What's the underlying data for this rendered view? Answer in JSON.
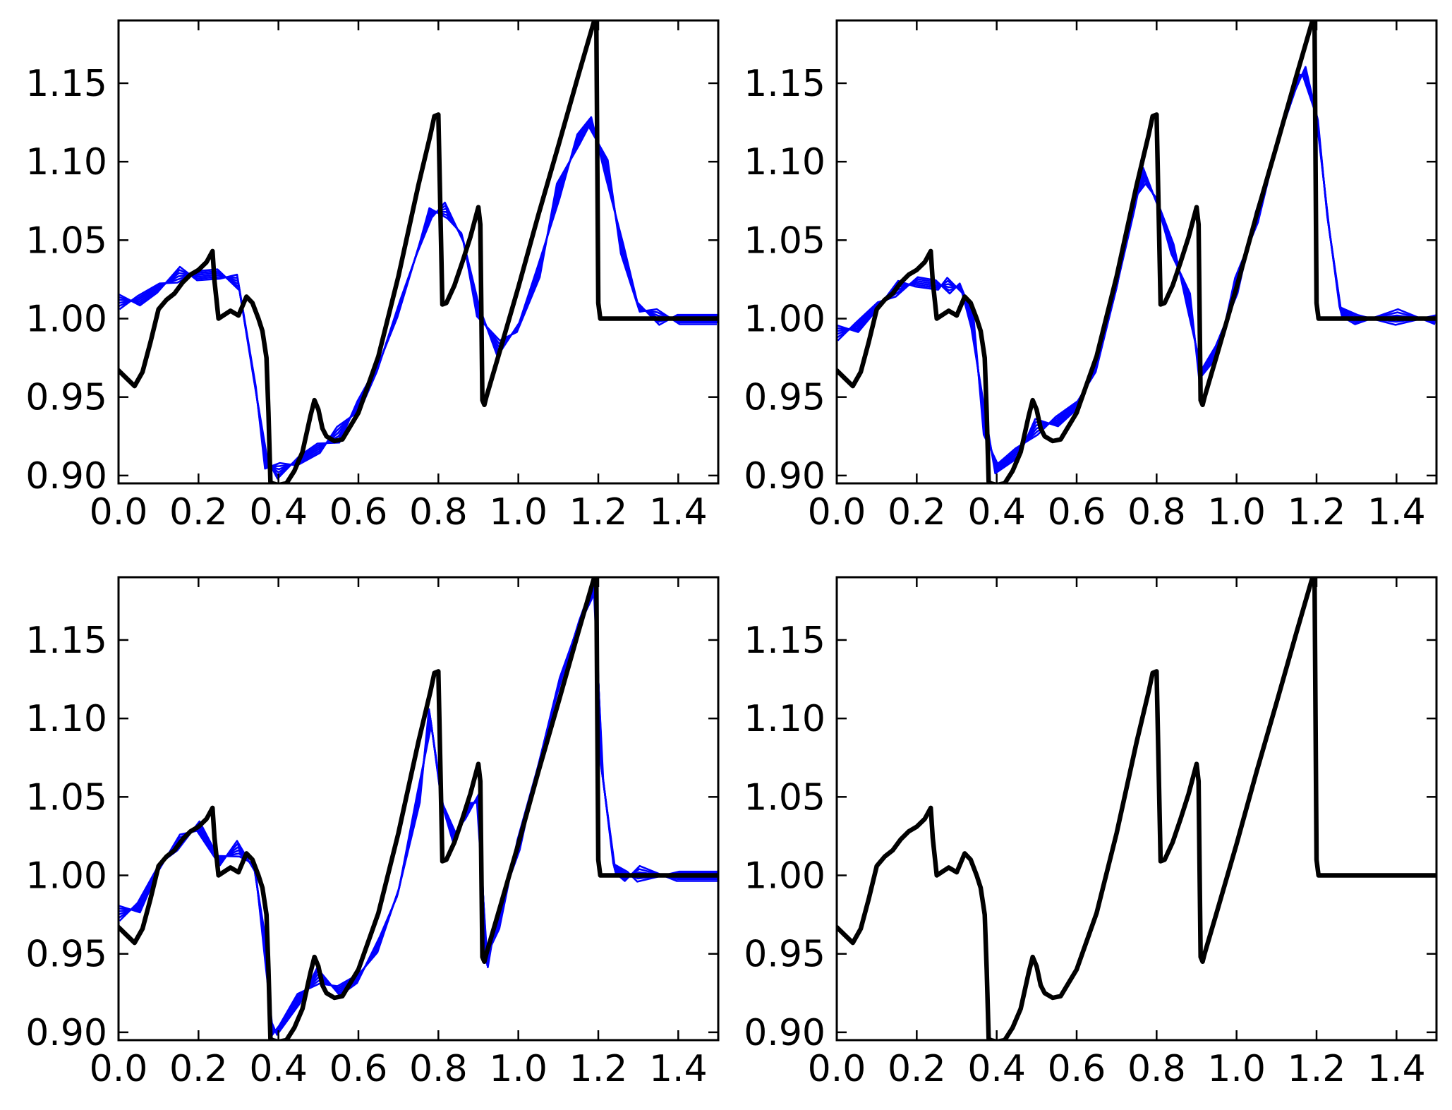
{
  "chart_data": [
    {
      "type": "line",
      "panel": "top-left",
      "xlim": [
        0.0,
        1.5
      ],
      "ylim": [
        0.895,
        1.19
      ],
      "xticks": [
        "0.0",
        "0.2",
        "0.4",
        "0.6",
        "0.8",
        "1.0",
        "1.2",
        "1.4"
      ],
      "yticks": [
        "0.90",
        "0.95",
        "1.00",
        "1.05",
        "1.10",
        "1.15"
      ],
      "reference": {
        "color": "#000000",
        "x": [
          0.0,
          0.02,
          0.04,
          0.06,
          0.08,
          0.1,
          0.12,
          0.14,
          0.16,
          0.18,
          0.2,
          0.22,
          0.235,
          0.24,
          0.25,
          0.28,
          0.3,
          0.32,
          0.335,
          0.35,
          0.36,
          0.37,
          0.375,
          0.38,
          0.385,
          0.4,
          0.42,
          0.44,
          0.46,
          0.48,
          0.49,
          0.5,
          0.51,
          0.52,
          0.54,
          0.56,
          0.6,
          0.65,
          0.7,
          0.75,
          0.78,
          0.79,
          0.8,
          0.81,
          0.82,
          0.84,
          0.86,
          0.88,
          0.9,
          0.905,
          0.91,
          0.915,
          0.92,
          0.95,
          1.0,
          1.05,
          1.1,
          1.15,
          1.19,
          1.195,
          1.2,
          1.205,
          1.21,
          1.3,
          1.4,
          1.5
        ],
        "y": [
          0.967,
          0.962,
          0.957,
          0.966,
          0.985,
          1.006,
          1.012,
          1.016,
          1.023,
          1.028,
          1.031,
          1.036,
          1.043,
          1.024,
          1.0,
          1.005,
          1.002,
          1.014,
          1.01,
          1.0,
          0.992,
          0.975,
          0.94,
          0.896,
          0.895,
          0.894,
          0.895,
          0.903,
          0.915,
          0.938,
          0.948,
          0.942,
          0.93,
          0.925,
          0.922,
          0.923,
          0.94,
          0.976,
          1.027,
          1.085,
          1.117,
          1.129,
          1.13,
          1.009,
          1.01,
          1.021,
          1.036,
          1.052,
          1.071,
          1.06,
          0.948,
          0.945,
          0.95,
          0.976,
          1.02,
          1.066,
          1.11,
          1.155,
          1.19,
          1.19,
          1.01,
          1.0,
          1.0,
          1.0,
          1.0,
          1.0
        ]
      },
      "ensemble": {
        "color": "#0000ff",
        "x": [
          0.0,
          0.05,
          0.1,
          0.15,
          0.2,
          0.25,
          0.3,
          0.34,
          0.37,
          0.4,
          0.45,
          0.5,
          0.55,
          0.6,
          0.65,
          0.7,
          0.75,
          0.78,
          0.82,
          0.86,
          0.9,
          0.95,
          1.0,
          1.05,
          1.1,
          1.15,
          1.18,
          1.22,
          1.26,
          1.3,
          1.35,
          1.4,
          1.5
        ],
        "y": [
          1.01,
          1.012,
          1.02,
          1.027,
          1.028,
          1.029,
          1.022,
          0.96,
          0.908,
          0.902,
          0.91,
          0.918,
          0.925,
          0.945,
          0.97,
          1.005,
          1.045,
          1.068,
          1.068,
          1.052,
          1.005,
          0.98,
          0.995,
          1.03,
          1.08,
          1.115,
          1.126,
          1.095,
          1.045,
          1.008,
          1.0,
          1.0,
          1.0
        ]
      }
    },
    {
      "type": "line",
      "panel": "top-right",
      "xlim": [
        0.0,
        1.5
      ],
      "ylim": [
        0.895,
        1.19
      ],
      "xticks": [
        "0.0",
        "0.2",
        "0.4",
        "0.6",
        "0.8",
        "1.0",
        "1.2",
        "1.4"
      ],
      "yticks": [
        "0.90",
        "0.95",
        "1.00",
        "1.05",
        "1.10",
        "1.15"
      ],
      "reference": {
        "color": "#000000",
        "x": [
          0.0,
          0.02,
          0.04,
          0.06,
          0.08,
          0.1,
          0.12,
          0.14,
          0.16,
          0.18,
          0.2,
          0.22,
          0.235,
          0.24,
          0.25,
          0.28,
          0.3,
          0.32,
          0.335,
          0.35,
          0.36,
          0.37,
          0.375,
          0.38,
          0.385,
          0.4,
          0.42,
          0.44,
          0.46,
          0.48,
          0.49,
          0.5,
          0.51,
          0.52,
          0.54,
          0.56,
          0.6,
          0.65,
          0.7,
          0.75,
          0.78,
          0.79,
          0.8,
          0.81,
          0.82,
          0.84,
          0.86,
          0.88,
          0.9,
          0.905,
          0.91,
          0.915,
          0.92,
          0.95,
          1.0,
          1.05,
          1.1,
          1.15,
          1.19,
          1.195,
          1.2,
          1.205,
          1.21,
          1.3,
          1.4,
          1.5
        ],
        "y": [
          0.967,
          0.962,
          0.957,
          0.966,
          0.985,
          1.006,
          1.012,
          1.016,
          1.023,
          1.028,
          1.031,
          1.036,
          1.043,
          1.024,
          1.0,
          1.005,
          1.002,
          1.014,
          1.01,
          1.0,
          0.992,
          0.975,
          0.94,
          0.896,
          0.895,
          0.894,
          0.895,
          0.903,
          0.915,
          0.938,
          0.948,
          0.942,
          0.93,
          0.925,
          0.922,
          0.923,
          0.94,
          0.976,
          1.027,
          1.085,
          1.117,
          1.129,
          1.13,
          1.009,
          1.01,
          1.021,
          1.036,
          1.052,
          1.071,
          1.06,
          0.948,
          0.945,
          0.95,
          0.976,
          1.02,
          1.066,
          1.11,
          1.155,
          1.19,
          1.19,
          1.01,
          1.0,
          1.0,
          1.0,
          1.0,
          1.0
        ]
      },
      "ensemble": {
        "color": "#0000ff",
        "x": [
          0.0,
          0.05,
          0.1,
          0.15,
          0.2,
          0.25,
          0.28,
          0.31,
          0.34,
          0.37,
          0.4,
          0.45,
          0.5,
          0.55,
          0.6,
          0.65,
          0.7,
          0.74,
          0.77,
          0.8,
          0.84,
          0.88,
          0.91,
          0.95,
          1.0,
          1.05,
          1.1,
          1.15,
          1.17,
          1.2,
          1.23,
          1.26,
          1.3,
          1.4,
          1.5
        ],
        "y": [
          0.99,
          0.995,
          1.008,
          1.018,
          1.024,
          1.022,
          1.02,
          1.02,
          0.998,
          0.93,
          0.905,
          0.915,
          0.93,
          0.935,
          0.945,
          0.97,
          1.02,
          1.072,
          1.09,
          1.075,
          1.045,
          1.01,
          0.965,
          0.98,
          1.02,
          1.065,
          1.11,
          1.15,
          1.158,
          1.13,
          1.06,
          1.005,
          1.0,
          1.0,
          1.0
        ]
      }
    },
    {
      "type": "line",
      "panel": "bottom-left",
      "xlim": [
        0.0,
        1.5
      ],
      "ylim": [
        0.895,
        1.19
      ],
      "xticks": [
        "0.0",
        "0.2",
        "0.4",
        "0.6",
        "0.8",
        "1.0",
        "1.2",
        "1.4"
      ],
      "yticks": [
        "0.90",
        "0.95",
        "1.00",
        "1.05",
        "1.10",
        "1.15"
      ],
      "reference": {
        "color": "#000000",
        "x": [
          0.0,
          0.02,
          0.04,
          0.06,
          0.08,
          0.1,
          0.12,
          0.14,
          0.16,
          0.18,
          0.2,
          0.22,
          0.235,
          0.24,
          0.25,
          0.28,
          0.3,
          0.32,
          0.335,
          0.35,
          0.36,
          0.37,
          0.375,
          0.38,
          0.385,
          0.4,
          0.42,
          0.44,
          0.46,
          0.48,
          0.49,
          0.5,
          0.51,
          0.52,
          0.54,
          0.56,
          0.6,
          0.65,
          0.7,
          0.75,
          0.78,
          0.79,
          0.8,
          0.81,
          0.82,
          0.84,
          0.86,
          0.88,
          0.9,
          0.905,
          0.91,
          0.915,
          0.92,
          0.95,
          1.0,
          1.05,
          1.1,
          1.15,
          1.19,
          1.195,
          1.2,
          1.205,
          1.21,
          1.3,
          1.4,
          1.5
        ],
        "y": [
          0.967,
          0.962,
          0.957,
          0.966,
          0.985,
          1.006,
          1.012,
          1.016,
          1.023,
          1.028,
          1.031,
          1.036,
          1.043,
          1.024,
          1.0,
          1.005,
          1.002,
          1.014,
          1.01,
          1.0,
          0.992,
          0.975,
          0.94,
          0.896,
          0.895,
          0.894,
          0.895,
          0.903,
          0.915,
          0.938,
          0.948,
          0.942,
          0.93,
          0.925,
          0.922,
          0.923,
          0.94,
          0.976,
          1.027,
          1.085,
          1.117,
          1.129,
          1.13,
          1.009,
          1.01,
          1.021,
          1.036,
          1.052,
          1.071,
          1.06,
          0.948,
          0.945,
          0.95,
          0.976,
          1.02,
          1.066,
          1.11,
          1.155,
          1.19,
          1.19,
          1.01,
          1.0,
          1.0,
          1.0,
          1.0,
          1.0
        ]
      },
      "ensemble": {
        "color": "#0000ff",
        "x": [
          0.0,
          0.05,
          0.1,
          0.15,
          0.2,
          0.25,
          0.3,
          0.34,
          0.37,
          0.38,
          0.4,
          0.45,
          0.5,
          0.55,
          0.6,
          0.65,
          0.7,
          0.75,
          0.78,
          0.81,
          0.84,
          0.87,
          0.9,
          0.92,
          0.95,
          1.0,
          1.05,
          1.1,
          1.15,
          1.19,
          1.21,
          1.24,
          1.27,
          1.3,
          1.4,
          1.5
        ],
        "y": [
          0.975,
          0.98,
          1.005,
          1.02,
          1.032,
          1.01,
          1.016,
          1.005,
          0.95,
          0.9,
          0.902,
          0.922,
          0.935,
          0.927,
          0.935,
          0.955,
          0.99,
          1.05,
          1.1,
          1.045,
          1.025,
          1.04,
          1.05,
          0.945,
          0.97,
          1.02,
          1.07,
          1.12,
          1.16,
          1.185,
          1.065,
          1.005,
          1.0,
          1.0,
          1.0,
          1.0
        ]
      }
    },
    {
      "type": "line",
      "panel": "bottom-right",
      "xlim": [
        0.0,
        1.5
      ],
      "ylim": [
        0.895,
        1.19
      ],
      "xticks": [
        "0.0",
        "0.2",
        "0.4",
        "0.6",
        "0.8",
        "1.0",
        "1.2",
        "1.4"
      ],
      "yticks": [
        "0.90",
        "0.95",
        "1.00",
        "1.05",
        "1.10",
        "1.15"
      ],
      "reference": {
        "color": "#000000",
        "x": [
          0.0,
          0.02,
          0.04,
          0.06,
          0.08,
          0.1,
          0.12,
          0.14,
          0.16,
          0.18,
          0.2,
          0.22,
          0.235,
          0.24,
          0.25,
          0.28,
          0.3,
          0.32,
          0.335,
          0.35,
          0.36,
          0.37,
          0.375,
          0.38,
          0.385,
          0.4,
          0.42,
          0.44,
          0.46,
          0.48,
          0.49,
          0.5,
          0.51,
          0.52,
          0.54,
          0.56,
          0.6,
          0.65,
          0.7,
          0.75,
          0.78,
          0.79,
          0.8,
          0.81,
          0.82,
          0.84,
          0.86,
          0.88,
          0.9,
          0.905,
          0.91,
          0.915,
          0.92,
          0.95,
          1.0,
          1.05,
          1.1,
          1.15,
          1.19,
          1.195,
          1.2,
          1.205,
          1.21,
          1.3,
          1.4,
          1.5
        ],
        "y": [
          0.967,
          0.962,
          0.957,
          0.966,
          0.985,
          1.006,
          1.012,
          1.016,
          1.023,
          1.028,
          1.031,
          1.036,
          1.043,
          1.024,
          1.0,
          1.005,
          1.002,
          1.014,
          1.01,
          1.0,
          0.992,
          0.975,
          0.94,
          0.896,
          0.895,
          0.894,
          0.895,
          0.903,
          0.915,
          0.938,
          0.948,
          0.942,
          0.93,
          0.925,
          0.922,
          0.923,
          0.94,
          0.976,
          1.027,
          1.085,
          1.117,
          1.129,
          1.13,
          1.009,
          1.01,
          1.021,
          1.036,
          1.052,
          1.071,
          1.06,
          0.948,
          0.945,
          0.95,
          0.976,
          1.02,
          1.066,
          1.11,
          1.155,
          1.19,
          1.19,
          1.01,
          1.0,
          1.0,
          1.0,
          1.0,
          1.0
        ]
      }
    }
  ]
}
